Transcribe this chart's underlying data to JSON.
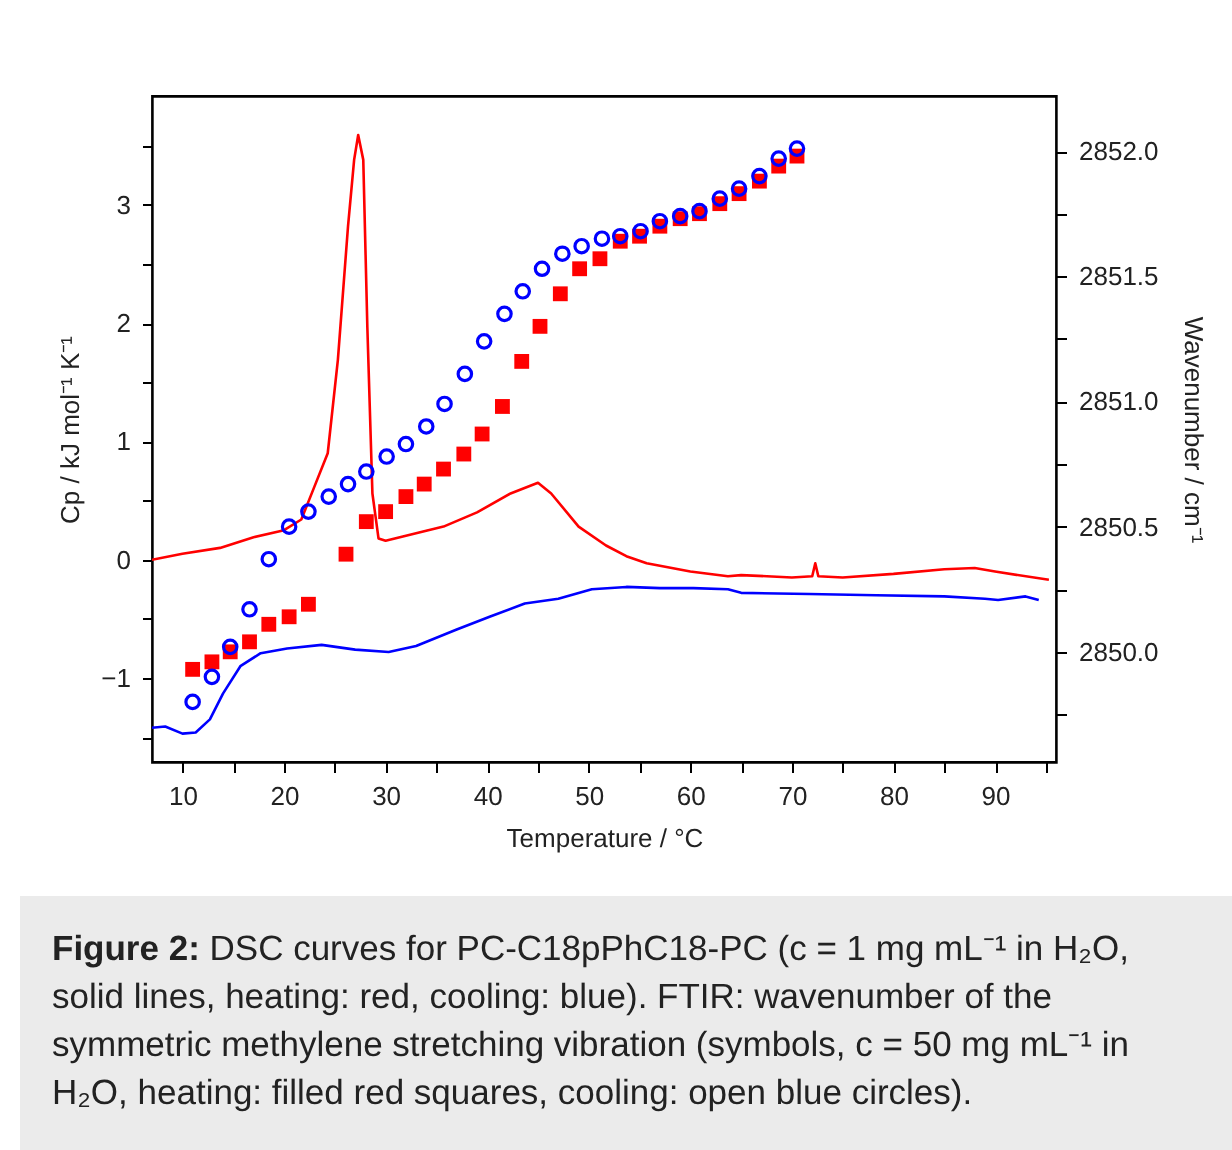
{
  "chart_data": {
    "type": "line",
    "xlabel": "Temperature / °C",
    "ylabel": "Cp / kJ mol⁻¹ K⁻¹",
    "y2label": "Wavenumber / cm⁻¹",
    "xlim": [
      7,
      96
    ],
    "xticks": [
      10,
      {
        "value": 15,
        "label": null
      },
      20,
      {
        "value": 25,
        "label": null
      },
      30,
      {
        "value": 35,
        "label": null
      },
      40,
      {
        "value": 45,
        "label": null
      },
      50,
      {
        "value": 55,
        "label": null
      },
      60,
      {
        "value": 65,
        "label": null
      },
      70,
      {
        "value": 75,
        "label": null
      },
      80,
      {
        "value": 85,
        "label": null
      },
      90,
      {
        "value": 95,
        "label": null
      }
    ],
    "ylim": [
      -1.71,
      3.92
    ],
    "yticks": [
      {
        "value": -1.5,
        "label": null
      },
      -1,
      {
        "value": -0.5,
        "label": null
      },
      0,
      {
        "value": 0.5,
        "label": null
      },
      1,
      {
        "value": 1.5,
        "label": null
      },
      2,
      {
        "value": 2.5,
        "label": null
      },
      3,
      {
        "value": 3.5,
        "label": null
      }
    ],
    "y2lim": [
      2849.56,
      2852.22
    ],
    "y2ticks": [
      {
        "value": 2849.75,
        "label": null
      },
      {
        "value": 2850,
        "label": "2850.0"
      },
      {
        "value": 2850.25,
        "label": null
      },
      {
        "value": 2850.5,
        "label": "2850.5"
      },
      {
        "value": 2850.75,
        "label": null
      },
      {
        "value": 2851,
        "label": "2851.0"
      },
      {
        "value": 2851.25,
        "label": null
      },
      {
        "value": 2851.5,
        "label": "2851.5"
      },
      {
        "value": 2851.75,
        "label": null
      },
      {
        "value": 2852,
        "label": "2852.0"
      }
    ],
    "grid": false,
    "series": [
      {
        "type": "line",
        "color": "#ff0000",
        "x": [
          7,
          10,
          13.7,
          17,
          20,
          21.7,
          23,
          24.3,
          25.3,
          26.3,
          26.9,
          27.3,
          27.8,
          28.2,
          28.7,
          29.3,
          30,
          35.7,
          39,
          42.3,
          45,
          46.3,
          49,
          51.7,
          53.7,
          55.7,
          60,
          63.7,
          65,
          70,
          72,
          72.3,
          72.6,
          75,
          80,
          85,
          88,
          90,
          95.3
        ],
        "values": [
          0,
          0.05,
          0.1,
          0.19,
          0.25,
          0.34,
          0.62,
          0.9,
          1.69,
          2.82,
          3.38,
          3.59,
          3.38,
          1.97,
          0.56,
          0.18,
          0.16,
          0.28,
          0.4,
          0.56,
          0.65,
          0.56,
          0.28,
          0.12,
          0.03,
          -0.03,
          -0.1,
          -0.14,
          -0.13,
          -0.15,
          -0.14,
          -0.03,
          -0.14,
          -0.15,
          -0.12,
          -0.08,
          -0.07,
          -0.1,
          -0.17
        ]
      },
      {
        "type": "line",
        "color": "#0000ff",
        "x": [
          7,
          8.3,
          10,
          11.3,
          12.7,
          14,
          15.7,
          17.7,
          20.3,
          23.7,
          27,
          30.3,
          33,
          37,
          40.3,
          43.7,
          47,
          50.3,
          53.7,
          57,
          60.3,
          63.7,
          65,
          71.7,
          78.3,
          85,
          89,
          90.3,
          93,
          94.3
        ],
        "values": [
          -1.42,
          -1.41,
          -1.47,
          -1.46,
          -1.35,
          -1.13,
          -0.9,
          -0.79,
          -0.75,
          -0.72,
          -0.76,
          -0.78,
          -0.73,
          -0.59,
          -0.48,
          -0.37,
          -0.33,
          -0.25,
          -0.23,
          -0.24,
          -0.24,
          -0.25,
          -0.28,
          -0.29,
          -0.3,
          -0.31,
          -0.33,
          -0.34,
          -0.31,
          -0.34
        ]
      },
      {
        "type": "scatter",
        "axis": "y2",
        "marker": "square",
        "color": "#ff0000",
        "x": [
          11,
          12.9,
          14.7,
          16.6,
          18.5,
          20.5,
          22.4,
          26.1,
          28.1,
          30,
          32,
          33.8,
          35.7,
          37.7,
          39.5,
          41.5,
          43.4,
          45.2,
          47.2,
          49.1,
          51.1,
          53.1,
          55,
          57,
          59,
          60.9,
          62.9,
          64.8,
          66.8,
          68.7,
          70.5
        ],
        "values": [
          2849.93,
          2849.96,
          2850,
          2850.04,
          2850.11,
          2850.14,
          2850.19,
          2850.39,
          2850.52,
          2850.56,
          2850.62,
          2850.67,
          2850.73,
          2850.79,
          2850.87,
          2850.98,
          2851.16,
          2851.3,
          2851.43,
          2851.53,
          2851.57,
          2851.64,
          2851.66,
          2851.7,
          2851.73,
          2851.75,
          2851.79,
          2851.83,
          2851.88,
          2851.94,
          2851.98
        ]
      },
      {
        "type": "scatter",
        "axis": "y2",
        "marker": "circle",
        "color": "#0000ff",
        "x": [
          11,
          12.9,
          14.7,
          16.6,
          18.5,
          20.5,
          22.4,
          24.4,
          26.3,
          28.1,
          30.1,
          32,
          34,
          35.8,
          37.8,
          39.7,
          41.7,
          43.5,
          45.4,
          47.4,
          49.3,
          51.3,
          53.1,
          55.1,
          57,
          59,
          60.9,
          62.9,
          64.8,
          66.8,
          68.7,
          70.5
        ],
        "values": [
          2849.8,
          2849.9,
          2850.02,
          2850.17,
          2850.37,
          2850.5,
          2850.56,
          2850.62,
          2850.67,
          2850.72,
          2850.78,
          2850.83,
          2850.9,
          2850.99,
          2851.11,
          2851.24,
          2851.35,
          2851.44,
          2851.53,
          2851.59,
          2851.62,
          2851.65,
          2851.66,
          2851.68,
          2851.72,
          2851.74,
          2851.76,
          2851.81,
          2851.85,
          2851.9,
          2851.97,
          2852.01
        ]
      }
    ],
    "annotations": [
      "Figure 2: DSC curves for PC-C18pPhC18-PC (c = 1 mg mL⁻¹ in H₂O, solid lines, heating: red, cooling: blue). FTIR: wavenumber of the symmetric methylene stretching vibration (symbols, c = 50 mg mL⁻¹ in H₂O, heating: filled red squares, cooling: open blue circles)."
    ]
  }
}
